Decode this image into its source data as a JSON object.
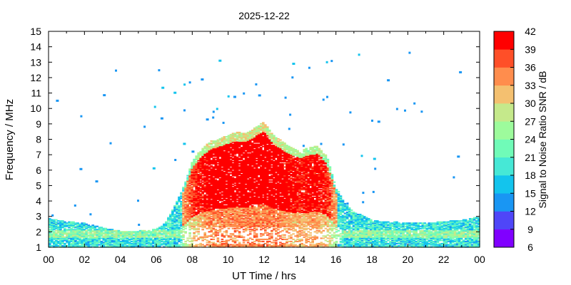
{
  "chart_data": {
    "type": "heatmap",
    "title": "2025-12-22",
    "xlabel": "UT Time / hrs",
    "ylabel": "Frequency / MHz",
    "colorbar_label": "Signal to Noise Ratio SNR / dB",
    "xlim": [
      0,
      24
    ],
    "ylim": [
      1,
      15
    ],
    "x_ticks": [
      "00",
      "02",
      "04",
      "06",
      "08",
      "10",
      "12",
      "14",
      "16",
      "18",
      "20",
      "22",
      "00"
    ],
    "y_ticks": [
      "1",
      "2",
      "3",
      "4",
      "5",
      "6",
      "7",
      "8",
      "9",
      "10",
      "11",
      "12",
      "13",
      "14",
      "15"
    ],
    "colorbar_ticks": [
      "6",
      "9",
      "12",
      "15",
      "18",
      "21",
      "24",
      "27",
      "30",
      "33",
      "36",
      "39",
      "42"
    ],
    "colorbar_range": [
      6,
      42
    ],
    "colorbar_colors": [
      "#8000ff",
      "#4f46f8",
      "#1996f3",
      "#13c4ed",
      "#46e8d6",
      "#70fbb8",
      "#9dfb9c",
      "#c5e98b",
      "#f4c070",
      "#ff8d4d",
      "#ff4f28",
      "#ff0000"
    ],
    "echo_envelope": {
      "description_values": "upper frequency (MHz) of dense echo region vs UT hour",
      "hours": [
        0,
        1,
        2,
        3,
        4,
        5,
        6,
        6.5,
        7,
        7.5,
        8,
        8.5,
        9,
        9.5,
        10,
        10.5,
        11,
        11.5,
        12,
        12.5,
        13,
        13.5,
        14,
        14.5,
        15,
        15.5,
        16,
        16.5,
        17,
        17.5,
        18,
        18.5,
        19,
        20,
        21,
        22,
        23,
        24
      ],
      "top_mhz": [
        2.8,
        2.6,
        2.5,
        2.2,
        2.0,
        2.0,
        2.1,
        2.5,
        3.6,
        4.8,
        6.5,
        7.3,
        7.8,
        8.0,
        8.2,
        8.4,
        8.3,
        8.7,
        9.1,
        8.2,
        7.8,
        7.4,
        7.2,
        7.4,
        7.5,
        6.8,
        4.8,
        3.8,
        3.2,
        3.0,
        2.7,
        2.6,
        2.6,
        2.5,
        2.5,
        2.6,
        2.7,
        2.9
      ],
      "peak_snr_db": 42
    }
  }
}
